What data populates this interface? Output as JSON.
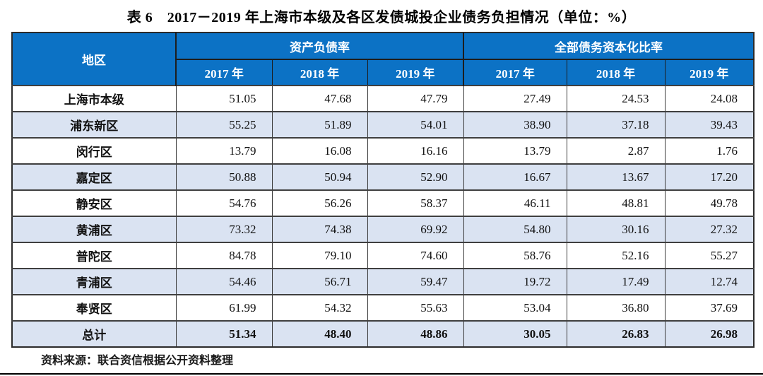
{
  "title": "表 6　2017－2019 年上海市本级及各区发债城投企业债务负担情况（单位：%）",
  "colors": {
    "header_bg": "#0c72c5",
    "header_text": "#ffffff",
    "row_alt_bg": "#dae3f2",
    "border_dark": "#1d1d1d"
  },
  "table": {
    "region_header": "地区",
    "groups": [
      {
        "label": "资产负债率",
        "years": [
          "2017 年",
          "2018 年",
          "2019 年"
        ]
      },
      {
        "label": "全部债务资本化比率",
        "years": [
          "2017 年",
          "2018 年",
          "2019 年"
        ]
      }
    ],
    "rows": [
      {
        "region": "上海市本级",
        "values": [
          "51.05",
          "47.68",
          "47.79",
          "27.49",
          "24.53",
          "24.08"
        ],
        "total": false
      },
      {
        "region": "浦东新区",
        "values": [
          "55.25",
          "51.89",
          "54.01",
          "38.90",
          "37.18",
          "39.43"
        ],
        "total": false
      },
      {
        "region": "闵行区",
        "values": [
          "13.79",
          "16.08",
          "16.16",
          "13.79",
          "2.87",
          "1.76"
        ],
        "total": false
      },
      {
        "region": "嘉定区",
        "values": [
          "50.88",
          "50.94",
          "52.90",
          "16.67",
          "13.67",
          "17.20"
        ],
        "total": false
      },
      {
        "region": "静安区",
        "values": [
          "54.76",
          "56.26",
          "58.37",
          "46.11",
          "48.81",
          "49.78"
        ],
        "total": false
      },
      {
        "region": "黄浦区",
        "values": [
          "73.32",
          "74.38",
          "69.92",
          "54.80",
          "30.16",
          "27.32"
        ],
        "total": false
      },
      {
        "region": "普陀区",
        "values": [
          "84.78",
          "79.10",
          "74.60",
          "58.76",
          "52.16",
          "55.27"
        ],
        "total": false
      },
      {
        "region": "青浦区",
        "values": [
          "54.46",
          "56.71",
          "59.47",
          "19.72",
          "17.49",
          "12.74"
        ],
        "total": false
      },
      {
        "region": "奉贤区",
        "values": [
          "61.99",
          "54.32",
          "55.63",
          "53.04",
          "36.80",
          "37.69"
        ],
        "total": false
      },
      {
        "region": "总计",
        "values": [
          "51.34",
          "48.40",
          "48.86",
          "30.05",
          "26.83",
          "26.98"
        ],
        "total": true
      }
    ]
  },
  "footer": {
    "source": "资料来源：联合资信根据公开资料整理"
  }
}
